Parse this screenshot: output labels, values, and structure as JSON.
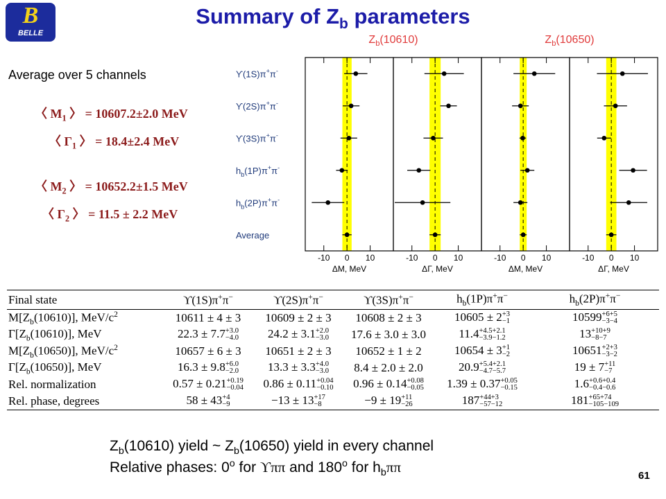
{
  "header": {
    "title": [
      {
        "t": "Summary of Z"
      },
      {
        "sub": "b"
      },
      {
        "t": " parameters"
      }
    ]
  },
  "logo": {
    "mark": "B",
    "text": "BELLE"
  },
  "summary": {
    "heading": "Average over 5 channels",
    "lines": [
      [
        {
          "t": "〈 M"
        },
        {
          "sub": "1"
        },
        {
          "t": " 〉 = 10607.2±2.0 MeV"
        }
      ],
      [
        {
          "t": "〈 Γ"
        },
        {
          "sub": "1"
        },
        {
          "t": " 〉 = 18.4±2.4 MeV"
        }
      ],
      [
        {
          "t": "〈 M"
        },
        {
          "sub": "2"
        },
        {
          "t": " 〉 = 10652.2±1.5 MeV"
        }
      ],
      [
        {
          "t": "〈 Γ"
        },
        {
          "sub": "2"
        },
        {
          "t": " 〉 = 11.5 ± 2.2 MeV"
        }
      ]
    ]
  },
  "chart_data": {
    "type": "errorbar",
    "groups": [
      [
        {
          "t": "Z"
        },
        {
          "sub": "b"
        },
        {
          "t": "(10610)"
        }
      ],
      [
        {
          "t": "Z"
        },
        {
          "sub": "b"
        },
        {
          "t": "(10650)"
        }
      ]
    ],
    "rows": [
      [
        {
          "t": "ϒ(1S)π"
        },
        {
          "sup": "+"
        },
        {
          "t": "π"
        },
        {
          "sup": "-"
        }
      ],
      [
        {
          "t": "ϒ(2S)π"
        },
        {
          "sup": "+"
        },
        {
          "t": "π"
        },
        {
          "sup": "-"
        }
      ],
      [
        {
          "t": "ϒ(3S)π"
        },
        {
          "sup": "+"
        },
        {
          "t": "π"
        },
        {
          "sup": "-"
        }
      ],
      [
        {
          "t": "h"
        },
        {
          "sub": "b"
        },
        {
          "t": "(1P)π"
        },
        {
          "sup": "+"
        },
        {
          "t": "π"
        },
        {
          "sup": "-"
        }
      ],
      [
        {
          "t": "h"
        },
        {
          "sub": "b"
        },
        {
          "t": "(2P)π"
        },
        {
          "sup": "+"
        },
        {
          "t": "π"
        },
        {
          "sup": "-"
        }
      ],
      [
        {
          "t": "Average"
        }
      ]
    ],
    "panels": [
      {
        "xlabel": "ΔM, MeV",
        "values": [
          3.8,
          1.8,
          0.8,
          -2.2,
          -8.2,
          0
        ],
        "errors": [
          5,
          3.6,
          3.6,
          2.5,
          7,
          2
        ]
      },
      {
        "xlabel": "ΔΓ, MeV",
        "values": [
          3.9,
          5.8,
          -0.8,
          -7.0,
          -5.4,
          0
        ],
        "errors": [
          8.5,
          3.6,
          4.2,
          5,
          12,
          2.4
        ]
      },
      {
        "xlabel": "ΔM, MeV",
        "values": [
          4.8,
          -1.2,
          -0.2,
          1.8,
          -1.2,
          0
        ],
        "errors": [
          9,
          3.6,
          1.4,
          3,
          3,
          1.5
        ]
      },
      {
        "xlabel": "ΔΓ, MeV",
        "values": [
          4.8,
          1.8,
          -3.1,
          9.4,
          7.5,
          0
        ],
        "errors": [
          11,
          5,
          3,
          6,
          8,
          2.2
        ]
      }
    ],
    "xlim": [
      -18,
      20
    ],
    "xticks": [
      -10,
      0,
      10
    ],
    "color": "#000000",
    "band_color": "#ffff00",
    "group_color": "#e03a3a",
    "row_color": "#1f3a7a"
  },
  "table": {
    "header": [
      [
        {
          "t": "Final state"
        }
      ],
      [
        {
          "t": "ϒ(1S)π"
        },
        {
          "sup": "+"
        },
        {
          "t": "π"
        },
        {
          "sup": "−"
        }
      ],
      [
        {
          "t": "ϒ(2S)π"
        },
        {
          "sup": "+"
        },
        {
          "t": "π"
        },
        {
          "sup": "−"
        }
      ],
      [
        {
          "t": "ϒ(3S)π"
        },
        {
          "sup": "+"
        },
        {
          "t": "π"
        },
        {
          "sup": "−"
        }
      ],
      [
        {
          "t": "h"
        },
        {
          "sub": "b"
        },
        {
          "t": "(1P)π"
        },
        {
          "sup": "+"
        },
        {
          "t": "π"
        },
        {
          "sup": "−"
        }
      ],
      [
        {
          "t": "h"
        },
        {
          "sub": "b"
        },
        {
          "t": "(2P)π"
        },
        {
          "sup": "+"
        },
        {
          "t": "π"
        },
        {
          "sup": "−"
        }
      ]
    ],
    "rows": [
      [
        [
          {
            "t": "M[Z"
          },
          {
            "sub": "b"
          },
          {
            "t": "(10610)], MeV/c"
          },
          {
            "sup": "2"
          }
        ],
        [
          {
            "t": "10611 ± 4 ± 3"
          }
        ],
        [
          {
            "t": "10609 ± 2 ± 3"
          }
        ],
        [
          {
            "t": "10608 ± 2 ± 3"
          }
        ],
        [
          {
            "t": "10605 ± 2"
          },
          {
            "ss": [
              "+3",
              "−1"
            ]
          }
        ],
        [
          {
            "t": "10599"
          },
          {
            "ss": [
              "+6+5",
              "−3−4"
            ]
          }
        ]
      ],
      [
        [
          {
            "t": "Γ[Z"
          },
          {
            "sub": "b"
          },
          {
            "t": "(10610)], MeV"
          }
        ],
        [
          {
            "t": "22.3 ± 7.7"
          },
          {
            "ss": [
              "+3.0",
              "−4.0"
            ]
          }
        ],
        [
          {
            "t": "24.2 ± 3.1"
          },
          {
            "ss": [
              "+2.0",
              "−3.0"
            ]
          }
        ],
        [
          {
            "t": "17.6 ± 3.0 ± 3.0"
          }
        ],
        [
          {
            "t": "11.4"
          },
          {
            "ss": [
              "+4.5+2.1",
              "−3.9−1.2"
            ]
          }
        ],
        [
          {
            "t": "13"
          },
          {
            "ss": [
              "+10+9",
              "−8−7"
            ]
          }
        ]
      ],
      [
        [
          {
            "t": "M[Z"
          },
          {
            "sub": "b"
          },
          {
            "t": "(10650)], MeV/c"
          },
          {
            "sup": "2"
          }
        ],
        [
          {
            "t": "10657 ± 6 ± 3"
          }
        ],
        [
          {
            "t": "10651 ± 2 ± 3"
          }
        ],
        [
          {
            "t": "10652 ± 1 ± 2"
          }
        ],
        [
          {
            "t": "10654 ± 3"
          },
          {
            "ss": [
              "+1",
              "−2"
            ]
          }
        ],
        [
          {
            "t": "10651"
          },
          {
            "ss": [
              "+2+3",
              "−3−2"
            ]
          }
        ]
      ],
      [
        [
          {
            "t": "Γ[Z"
          },
          {
            "sub": "b"
          },
          {
            "t": "(10650)], MeV"
          }
        ],
        [
          {
            "t": "16.3 ± 9.8"
          },
          {
            "ss": [
              "+6.0",
              "−2.0"
            ]
          }
        ],
        [
          {
            "t": "13.3 ± 3.3"
          },
          {
            "ss": [
              "+4.0",
              "−3.0"
            ]
          }
        ],
        [
          {
            "t": "8.4 ± 2.0 ± 2.0"
          }
        ],
        [
          {
            "t": "20.9"
          },
          {
            "ss": [
              "+5.4+2.1",
              "−4.7−5.7"
            ]
          }
        ],
        [
          {
            "t": "19 ± 7"
          },
          {
            "ss": [
              "+11",
              "−7"
            ]
          }
        ]
      ],
      [
        [
          {
            "t": "Rel. normalization"
          }
        ],
        [
          {
            "t": "0.57 ± 0.21"
          },
          {
            "ss": [
              "+0.19",
              "−0.04"
            ]
          }
        ],
        [
          {
            "t": "0.86 ± 0.11"
          },
          {
            "ss": [
              "+0.04",
              "−0.10"
            ]
          }
        ],
        [
          {
            "t": "0.96 ± 0.14"
          },
          {
            "ss": [
              "+0.08",
              "−0.05"
            ]
          }
        ],
        [
          {
            "t": "1.39 ± 0.37"
          },
          {
            "ss": [
              "+0.05",
              "−0.15"
            ]
          }
        ],
        [
          {
            "t": "1.6"
          },
          {
            "ss": [
              "+0.6+0.4",
              "−0.4−0.6"
            ]
          }
        ]
      ],
      [
        [
          {
            "t": "Rel. phase, degrees"
          }
        ],
        [
          {
            "t": "58 ± 43"
          },
          {
            "ss": [
              "+4",
              "−9"
            ]
          }
        ],
        [
          {
            "t": "−13 ± 13"
          },
          {
            "ss": [
              "+17",
              "−8"
            ]
          }
        ],
        [
          {
            "t": "−9 ± 19"
          },
          {
            "ss": [
              "+11",
              "−26"
            ]
          }
        ],
        [
          {
            "t": "187"
          },
          {
            "ss": [
              "+44+3",
              "−57−12"
            ]
          }
        ],
        [
          {
            "t": "181"
          },
          {
            "ss": [
              "+65+74",
              "−105−109"
            ]
          }
        ]
      ]
    ]
  },
  "conclusion": {
    "lines": [
      [
        {
          "t": "Z"
        },
        {
          "sub": "b"
        },
        {
          "t": "(10610) yield ~ Z"
        },
        {
          "sub": "b"
        },
        {
          "t": "(10650) yield in every channel"
        }
      ],
      [
        {
          "t": "Relative phases: 0"
        },
        {
          "sup": "o"
        },
        {
          "t": " for "
        },
        {
          "serif": "ϒππ"
        },
        {
          "t": " and 180"
        },
        {
          "sup": "o"
        },
        {
          "t": " for h"
        },
        {
          "sub": "b"
        },
        {
          "serif": "ππ"
        }
      ]
    ]
  },
  "footer": {
    "page": "61"
  }
}
